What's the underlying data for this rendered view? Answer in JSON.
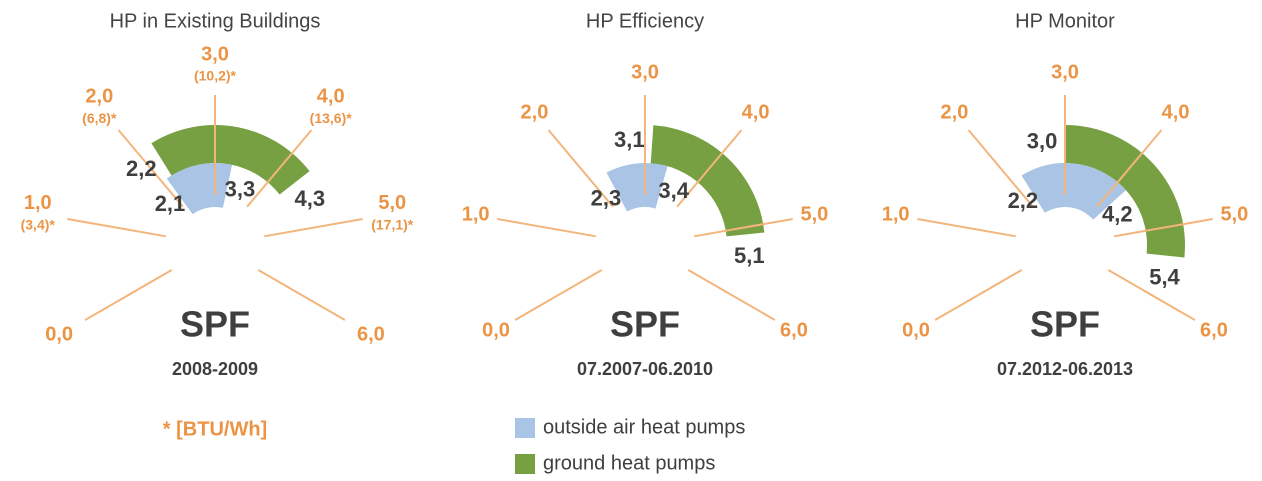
{
  "chart_data": [
    {
      "type": "gauge",
      "title": "HP in Existing Buildings",
      "subtitle": "SPF",
      "period": "2008-2009",
      "ylim": [
        0,
        6
      ],
      "yticks": [
        {
          "value": 0,
          "label": "0,0"
        },
        {
          "value": 1,
          "label": "1,0",
          "note": "(3,4)*"
        },
        {
          "value": 2,
          "label": "2,0",
          "note": "(6,8)*"
        },
        {
          "value": 3,
          "label": "3,0",
          "note": "(10,2)*"
        },
        {
          "value": 4,
          "label": "4,0",
          "note": "(13,6)*"
        },
        {
          "value": 5,
          "label": "5,0",
          "note": "(17,1)*"
        },
        {
          "value": 6,
          "label": "6,0"
        }
      ],
      "footnote": "* [BTU/Wh]",
      "series": [
        {
          "values": [
            2.1,
            3.3
          ],
          "value_labels": [
            "2,1",
            "3,3"
          ]
        },
        {
          "values": [
            2.2,
            4.3
          ],
          "value_labels": [
            "2,2",
            "4,3"
          ]
        }
      ]
    },
    {
      "type": "gauge",
      "title": "HP Efficiency",
      "subtitle": "SPF",
      "period": "07.2007-06.2010",
      "ylim": [
        0,
        6
      ],
      "yticks": [
        {
          "value": 0,
          "label": "0,0"
        },
        {
          "value": 1,
          "label": "1,0"
        },
        {
          "value": 2,
          "label": "2,0"
        },
        {
          "value": 3,
          "label": "3,0"
        },
        {
          "value": 4,
          "label": "4,0"
        },
        {
          "value": 5,
          "label": "5,0"
        },
        {
          "value": 6,
          "label": "6,0"
        }
      ],
      "series": [
        {
          "values": [
            2.3,
            3.4
          ],
          "value_labels": [
            "2,3",
            "3,4"
          ]
        },
        {
          "values": [
            3.1,
            5.1
          ],
          "value_labels": [
            "3,1",
            "5,1"
          ]
        }
      ]
    },
    {
      "type": "gauge",
      "title": "HP Monitor",
      "subtitle": "SPF",
      "period": "07.2012-06.2013",
      "ylim": [
        0,
        6
      ],
      "yticks": [
        {
          "value": 0,
          "label": "0,0"
        },
        {
          "value": 1,
          "label": "1,0"
        },
        {
          "value": 2,
          "label": "2,0"
        },
        {
          "value": 3,
          "label": "3,0"
        },
        {
          "value": 4,
          "label": "4,0"
        },
        {
          "value": 5,
          "label": "5,0"
        },
        {
          "value": 6,
          "label": "6,0"
        }
      ],
      "series": [
        {
          "values": [
            2.2,
            4.2
          ],
          "value_labels": [
            "2,2",
            "4,2"
          ]
        },
        {
          "values": [
            3.0,
            5.4
          ],
          "value_labels": [
            "3,0",
            "5,4"
          ]
        }
      ]
    }
  ],
  "legend": [
    {
      "name": "outside air heat pumps",
      "color": "#a9c4e4"
    },
    {
      "name": "ground heat pumps",
      "color": "#77a042"
    }
  ]
}
